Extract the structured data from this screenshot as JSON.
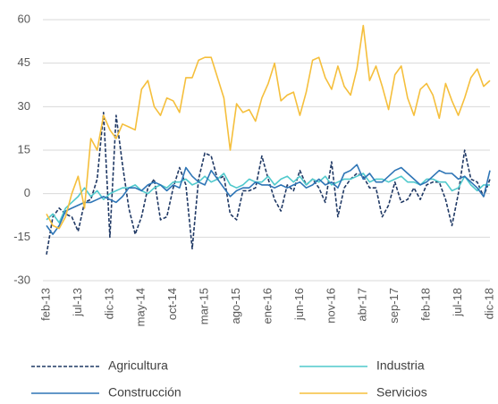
{
  "chart_data": {
    "type": "line",
    "categories": [
      "feb-13",
      null,
      null,
      null,
      null,
      "jul-13",
      null,
      null,
      null,
      null,
      "dic-13",
      null,
      null,
      null,
      null,
      "may-14",
      null,
      null,
      null,
      null,
      "oct-14",
      null,
      null,
      null,
      null,
      "mar-15",
      null,
      null,
      null,
      null,
      "ago-15",
      null,
      null,
      null,
      null,
      "ene-16",
      null,
      null,
      null,
      null,
      "jun-16",
      null,
      null,
      null,
      null,
      "nov-16",
      null,
      null,
      null,
      null,
      "abr-17",
      null,
      null,
      null,
      null,
      "sep-17",
      null,
      null,
      null,
      null,
      "feb-18",
      null,
      null,
      null,
      null,
      "jul-18",
      null,
      null,
      null,
      null,
      "dic-18"
    ],
    "series": [
      {
        "name": "Agricultura",
        "color": "#1f3864",
        "dashed": true,
        "values": [
          -21,
          -8,
          -5,
          -7,
          -8,
          -13,
          -3,
          -2,
          5,
          28,
          -15,
          27,
          10,
          -5,
          -14,
          -8,
          2,
          5,
          -9,
          -8,
          2,
          9,
          3,
          -19,
          5,
          14,
          13,
          5,
          6,
          -7,
          -9,
          1,
          1,
          2,
          13,
          5,
          -2,
          -6,
          3,
          1,
          8,
          3,
          5,
          2,
          -3,
          11,
          -8,
          2,
          5,
          7,
          6,
          2,
          2,
          -8,
          -4,
          4,
          -3,
          -2,
          2,
          -2,
          3,
          4,
          4,
          -2,
          -11,
          0,
          15,
          5,
          4,
          -1,
          5
        ]
      },
      {
        "name": "Industria",
        "color": "#4fc9cc",
        "dashed": false,
        "values": [
          -9,
          -7,
          -10,
          -5,
          -3,
          -1,
          2,
          -1,
          1,
          -2,
          0,
          1,
          2,
          2,
          3,
          1,
          0,
          2,
          3,
          2,
          4,
          4,
          5,
          3,
          4,
          6,
          4,
          5,
          7,
          3,
          2,
          3,
          5,
          4,
          4,
          6,
          3,
          5,
          6,
          4,
          6,
          3,
          5,
          4,
          6,
          3,
          4,
          5,
          5,
          6,
          7,
          4,
          5,
          5,
          4,
          5,
          6,
          4,
          4,
          3,
          5,
          5,
          4,
          4,
          1,
          2,
          6,
          3,
          1,
          3,
          3
        ]
      },
      {
        "name": "Construcción",
        "color": "#2e75b6",
        "dashed": false,
        "values": [
          -11,
          -14,
          -11,
          -6,
          -5,
          -4,
          -3,
          -3,
          -2,
          -1,
          -2,
          -3,
          -1,
          2,
          2,
          1,
          3,
          4,
          3,
          1,
          3,
          2,
          9,
          6,
          4,
          3,
          8,
          5,
          2,
          -1,
          1,
          2,
          2,
          4,
          3,
          3,
          2,
          3,
          2,
          3,
          4,
          2,
          3,
          5,
          3,
          4,
          2,
          7,
          8,
          10,
          5,
          7,
          4,
          4,
          6,
          8,
          9,
          7,
          5,
          3,
          4,
          6,
          8,
          7,
          7,
          5,
          6,
          4,
          2,
          -1,
          8
        ]
      },
      {
        "name": "Servicios",
        "color": "#f5bf3c",
        "dashed": false,
        "values": [
          -7,
          -11,
          -12,
          -8,
          0,
          6,
          -5,
          19,
          15,
          27,
          22,
          19,
          24,
          23,
          22,
          36,
          39,
          30,
          27,
          33,
          32,
          28,
          40,
          40,
          46,
          47,
          47,
          40,
          33,
          15,
          31,
          28,
          29,
          25,
          33,
          38,
          45,
          32,
          34,
          35,
          27,
          35,
          46,
          47,
          40,
          36,
          44,
          37,
          34,
          43,
          58,
          39,
          44,
          37,
          29,
          41,
          44,
          33,
          27,
          36,
          38,
          34,
          26,
          38,
          32,
          27,
          33,
          40,
          43,
          37,
          39
        ]
      }
    ],
    "ylim": [
      -30,
      60
    ],
    "yticks": [
      -30,
      -15,
      0,
      15,
      30,
      45,
      60
    ],
    "grid": true,
    "legend": "bottom"
  }
}
